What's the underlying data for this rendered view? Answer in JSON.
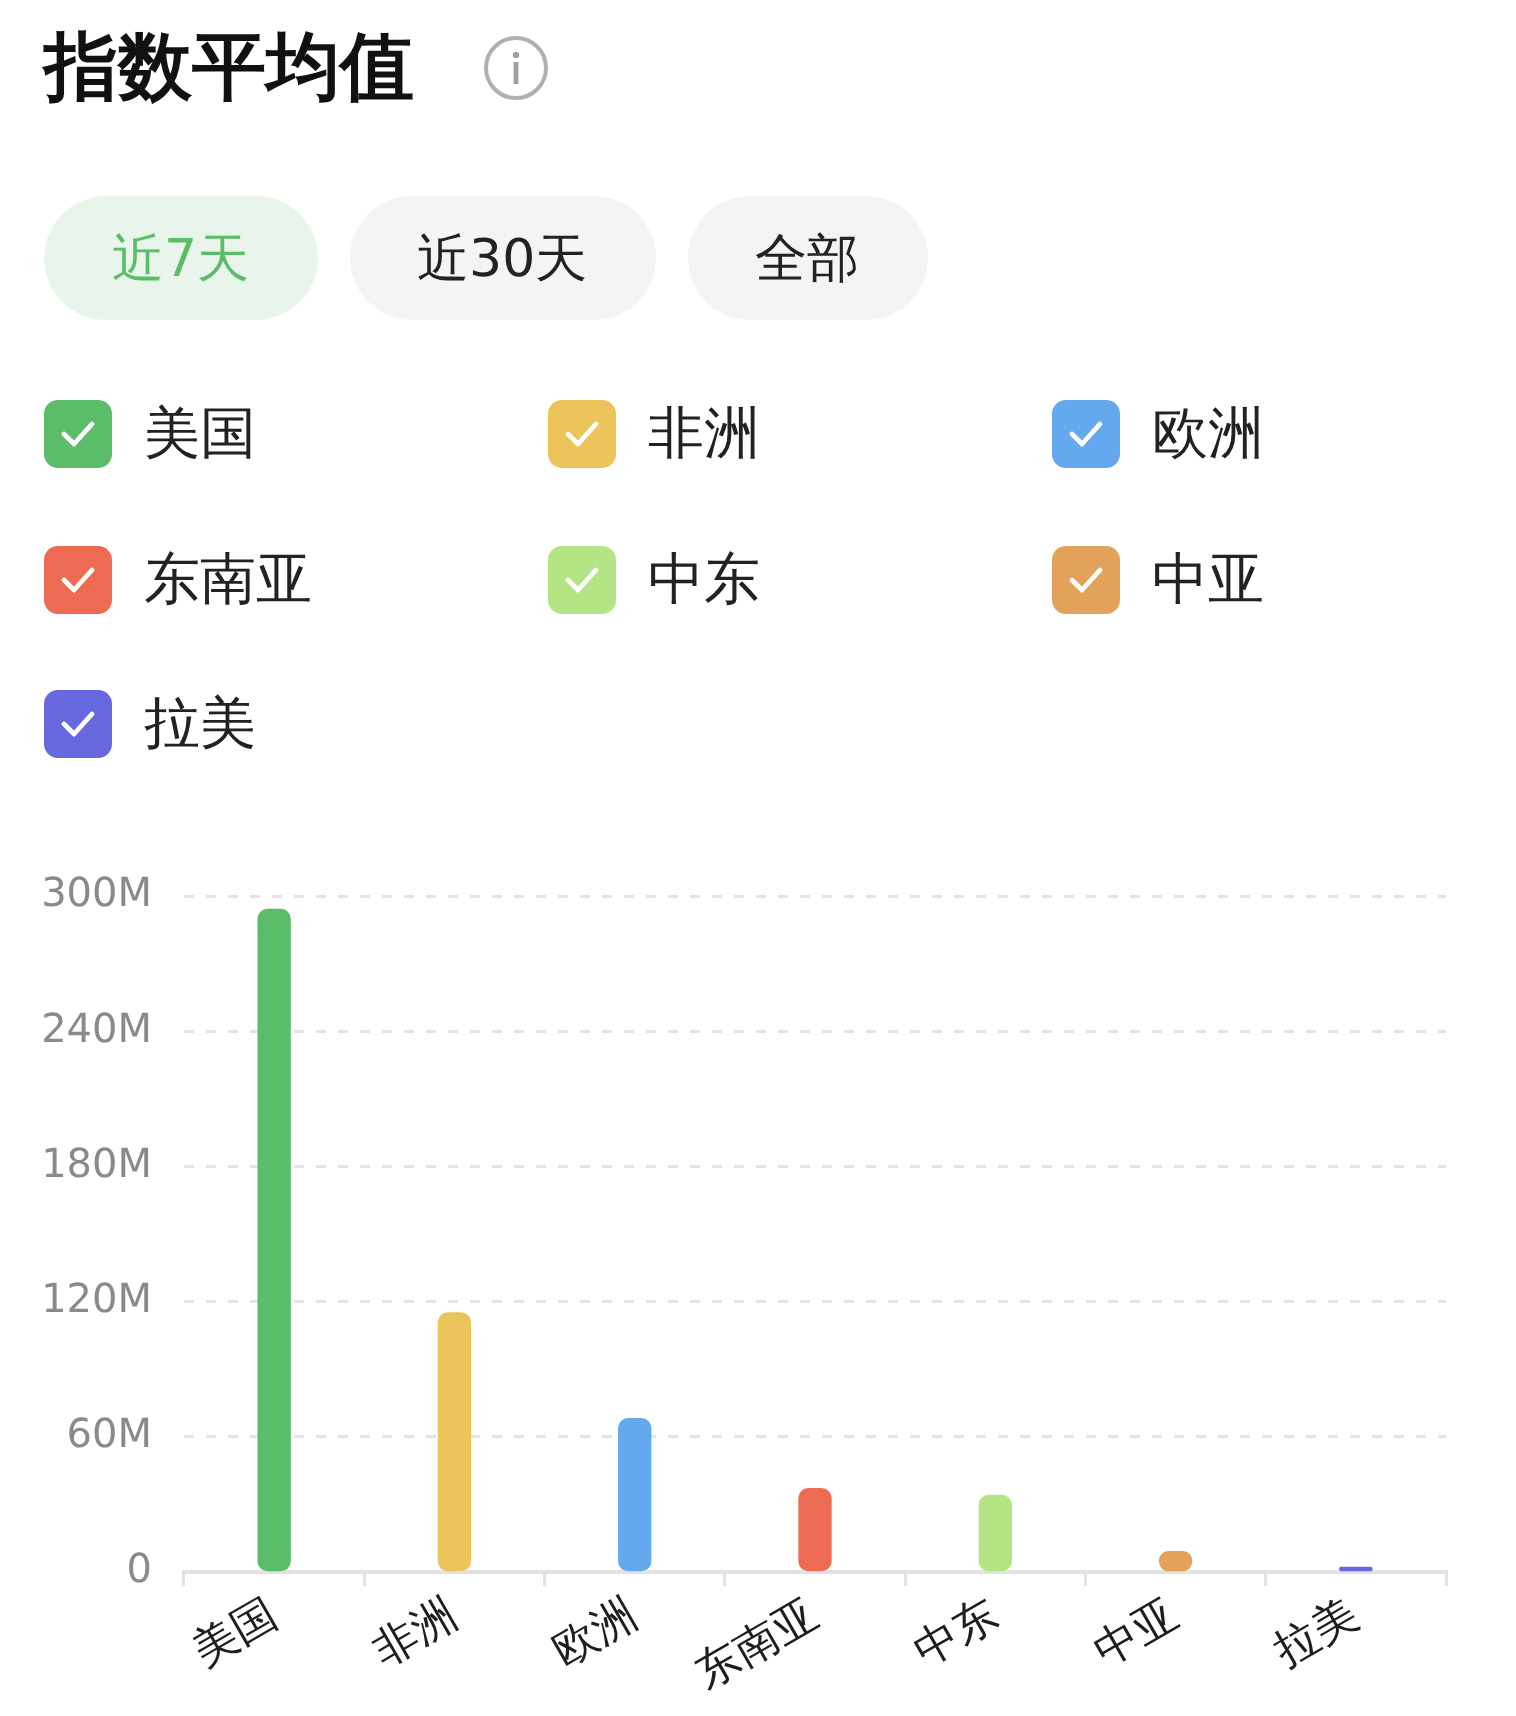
{
  "chart_data": {
    "type": "bar",
    "title": "指数平均值",
    "annotations": [
      "近7天",
      "近30天",
      "全部"
    ],
    "categories": [
      "美国",
      "非洲",
      "欧洲",
      "东南亚",
      "中东",
      "中亚",
      "拉美"
    ],
    "series": [
      {
        "name": "美国",
        "color": "#5bbd6a",
        "values": [
          294,
          null,
          null,
          null,
          null,
          null,
          null
        ]
      },
      {
        "name": "非洲",
        "color": "#ebc55a",
        "values": [
          null,
          115,
          null,
          null,
          null,
          null,
          null
        ]
      },
      {
        "name": "欧洲",
        "color": "#64a8ee",
        "values": [
          null,
          null,
          68,
          null,
          null,
          null,
          null
        ]
      },
      {
        "name": "东南亚",
        "color": "#ec6b52",
        "values": [
          null,
          null,
          null,
          37,
          null,
          null,
          null
        ]
      },
      {
        "name": "中东",
        "color": "#b5e484",
        "values": [
          null,
          null,
          null,
          null,
          34,
          null,
          null
        ]
      },
      {
        "name": "中亚",
        "color": "#e3a25a",
        "values": [
          null,
          null,
          null,
          null,
          null,
          9,
          null
        ]
      },
      {
        "name": "拉美",
        "color": "#6768dd",
        "values": [
          null,
          null,
          null,
          null,
          null,
          null,
          2
        ]
      }
    ],
    "ylim": [
      0,
      300
    ],
    "yticks": [
      0,
      {
        "value": 60,
        "label": "60M"
      },
      {
        "value": 120,
        "label": "120M"
      },
      {
        "value": 180,
        "label": "180M"
      },
      {
        "value": 240,
        "label": "240M"
      },
      {
        "value": 300,
        "label": "300M"
      }
    ],
    "grid": "y",
    "legend": "top"
  }
}
